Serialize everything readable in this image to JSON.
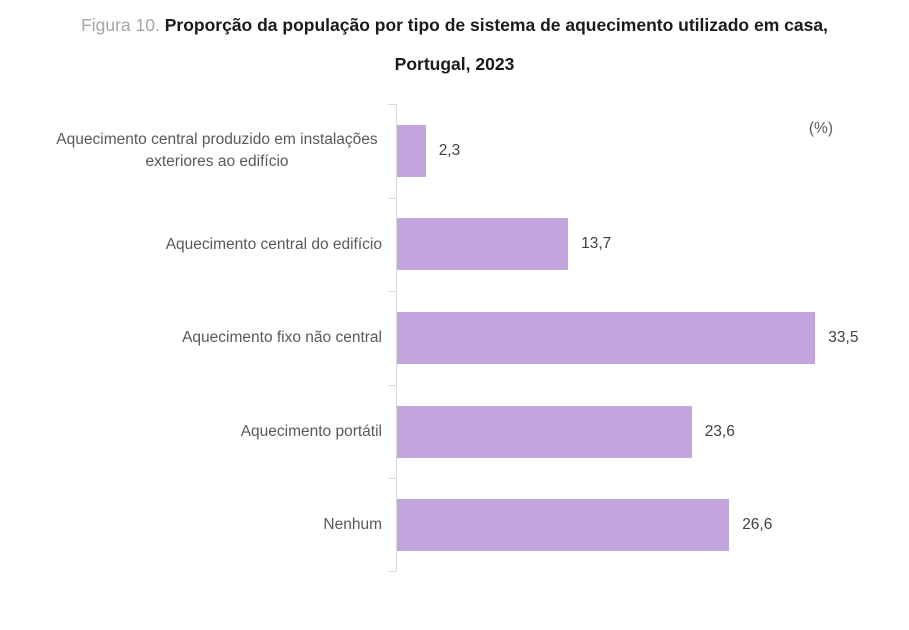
{
  "title": {
    "prefix": "Figura 10. ",
    "main": "Proporção da população por tipo de sistema de aquecimento utilizado em casa,",
    "line2": "Portugal, 2023"
  },
  "unit_label": "(%)",
  "colors": {
    "bar": "#C1A5DC",
    "axis": "#D9D9D9",
    "label": "#595959",
    "value": "#404040",
    "title": "#1A1A1A",
    "title_prefix": "#A6A6A6"
  },
  "chart_data": {
    "type": "bar",
    "orientation": "horizontal",
    "title": "Proporção da população por tipo de sistema de aquecimento utilizado em casa, Portugal, 2023",
    "unit": "%",
    "categories": [
      "Aquecimento central produzido em instalações exteriores ao edifício",
      "Aquecimento central do edifício",
      "Aquecimento fixo não central",
      "Aquecimento portátil",
      "Nenhum"
    ],
    "values": [
      2.3,
      13.7,
      33.5,
      23.6,
      26.6
    ],
    "value_labels": [
      "2,3",
      "13,7",
      "33,5",
      "23,6",
      "26,6"
    ],
    "xlabel": "(%)",
    "xlim": [
      0,
      41
    ],
    "grid": false,
    "legend": false,
    "data_labels": true
  }
}
